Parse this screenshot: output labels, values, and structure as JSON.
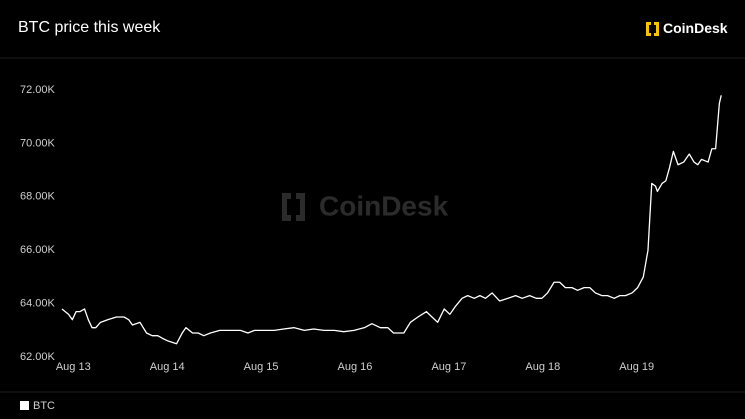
{
  "chart_data": {
    "type": "line",
    "title": "BTC price this week",
    "brand": "CoinDesk",
    "x": [
      12.88,
      12.95,
      12.99,
      13.03,
      13.07,
      13.12,
      13.16,
      13.2,
      13.24,
      13.29,
      13.37,
      13.46,
      13.54,
      13.59,
      13.63,
      13.71,
      13.78,
      13.84,
      13.9,
      13.95,
      14.01,
      14.1,
      14.16,
      14.2,
      14.27,
      14.33,
      14.39,
      14.46,
      14.56,
      14.67,
      14.78,
      14.86,
      14.93,
      15.03,
      15.14,
      15.24,
      15.35,
      15.46,
      15.56,
      15.67,
      15.78,
      15.88,
      15.99,
      16.1,
      16.18,
      16.27,
      16.35,
      16.41,
      16.52,
      16.59,
      16.67,
      16.76,
      16.82,
      16.88,
      16.95,
      17.01,
      17.07,
      17.14,
      17.2,
      17.27,
      17.33,
      17.39,
      17.46,
      17.54,
      17.63,
      17.71,
      17.78,
      17.86,
      17.93,
      17.99,
      18.05,
      18.12,
      18.18,
      18.24,
      18.31,
      18.37,
      18.44,
      18.5,
      18.56,
      18.63,
      18.69,
      18.76,
      18.82,
      18.88,
      18.95,
      19.01,
      19.07,
      19.12,
      19.16,
      19.2,
      19.22,
      19.27,
      19.31,
      19.35,
      19.39,
      19.44,
      19.5,
      19.56,
      19.61,
      19.65,
      19.69,
      19.76,
      19.8,
      19.84,
      19.88,
      19.9
    ],
    "series": [
      {
        "name": "BTC",
        "color": "#ffffff",
        "values": [
          63800,
          63600,
          63400,
          63700,
          63700,
          63800,
          63400,
          63100,
          63100,
          63300,
          63400,
          63500,
          63500,
          63400,
          63200,
          63300,
          62900,
          62800,
          62800,
          62700,
          62600,
          62500,
          62900,
          63100,
          62900,
          62900,
          62800,
          62900,
          63000,
          63000,
          63000,
          62900,
          63000,
          63000,
          63000,
          63050,
          63100,
          63000,
          63050,
          63000,
          63000,
          62950,
          63000,
          63100,
          63250,
          63100,
          63100,
          62900,
          62900,
          63300,
          63500,
          63700,
          63500,
          63300,
          63800,
          63600,
          63900,
          64200,
          64300,
          64200,
          64300,
          64200,
          64400,
          64100,
          64200,
          64300,
          64200,
          64300,
          64200,
          64200,
          64400,
          64800,
          64800,
          64600,
          64600,
          64500,
          64600,
          64600,
          64400,
          64300,
          64300,
          64200,
          64300,
          64300,
          64400,
          64600,
          65000,
          66000,
          68500,
          68400,
          68200,
          68500,
          68600,
          69100,
          69700,
          69200,
          69300,
          69600,
          69300,
          69200,
          69400,
          69300,
          69800,
          69800,
          71500,
          71800
        ]
      }
    ],
    "xlim": [
      12.88,
      19.94
    ],
    "xticks": [
      {
        "value": 13,
        "label": "Aug 13"
      },
      {
        "value": 14,
        "label": "Aug 14"
      },
      {
        "value": 15,
        "label": "Aug 15"
      },
      {
        "value": 16,
        "label": "Aug 16"
      },
      {
        "value": 17,
        "label": "Aug 17"
      },
      {
        "value": 18,
        "label": "Aug 18"
      },
      {
        "value": 19,
        "label": "Aug 19"
      }
    ],
    "ylim": [
      61890,
      72560
    ],
    "yticks": [
      {
        "value": 62000,
        "label": "62.00K"
      },
      {
        "value": 64000,
        "label": "64.00K"
      },
      {
        "value": 66000,
        "label": "66.00K"
      },
      {
        "value": 68000,
        "label": "68.00K"
      },
      {
        "value": 70000,
        "label": "70.00K"
      },
      {
        "value": 72000,
        "label": "72.00K"
      }
    ],
    "legend": "bottom-left"
  }
}
